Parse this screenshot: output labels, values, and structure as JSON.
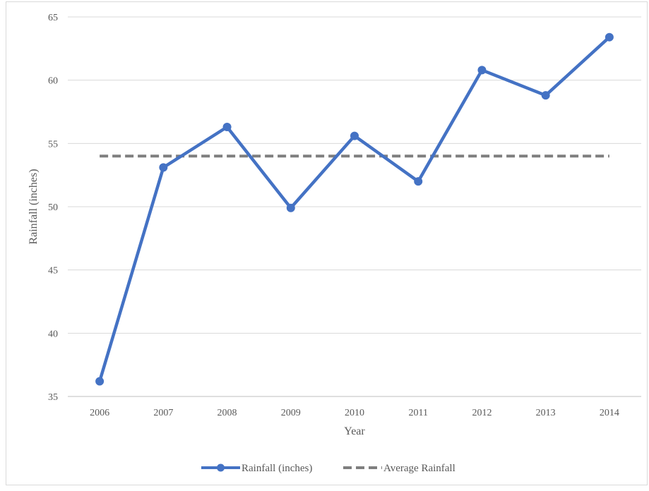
{
  "chart_data": {
    "type": "line",
    "x": [
      "2006",
      "2007",
      "2008",
      "2009",
      "2010",
      "2011",
      "2012",
      "2013",
      "2014"
    ],
    "series": [
      {
        "name": "Rainfall (inches)",
        "values": [
          36.2,
          53.1,
          56.3,
          49.9,
          55.6,
          52.0,
          60.8,
          58.8,
          63.4
        ],
        "color": "#4472c4",
        "style": "solid",
        "markers": true
      },
      {
        "name": "Average Rainfall",
        "values": [
          54.0,
          54.0,
          54.0,
          54.0,
          54.0,
          54.0,
          54.0,
          54.0,
          54.0
        ],
        "color": "#7f7f7f",
        "style": "dashed",
        "markers": false
      }
    ],
    "xlabel": "Year",
    "ylabel": "Rainfall (inches)",
    "ylim": [
      35,
      65
    ],
    "yticks": [
      35,
      40,
      45,
      50,
      55,
      60,
      65
    ],
    "grid": "horizontal",
    "legend_position": "bottom"
  }
}
